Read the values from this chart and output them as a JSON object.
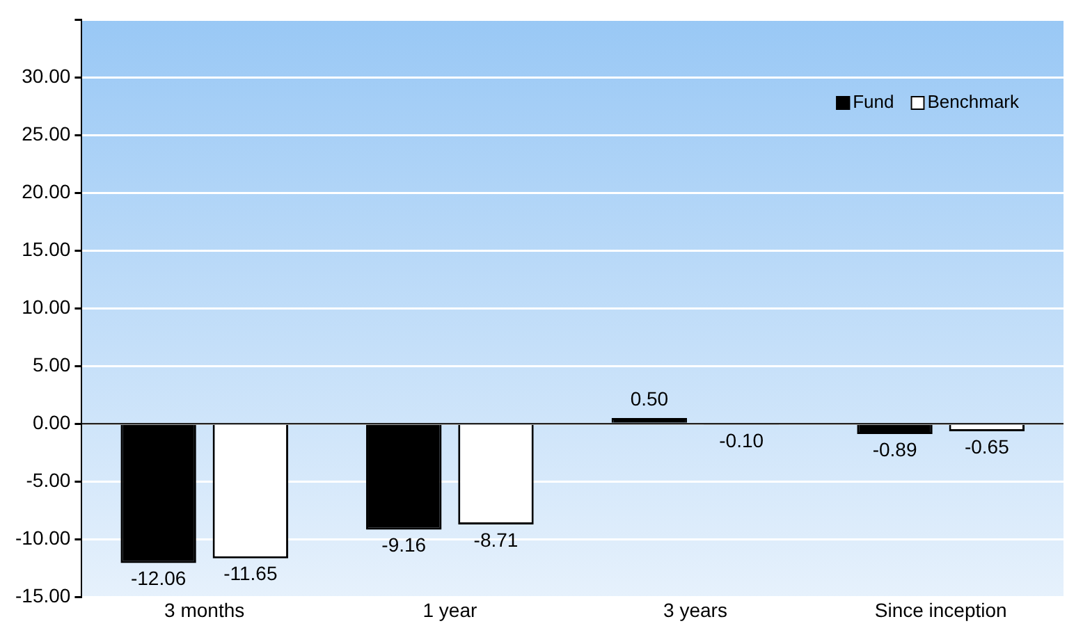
{
  "chart_data": {
    "type": "bar",
    "categories": [
      "3 months",
      "1 year",
      "3 years",
      "Since inception"
    ],
    "series": [
      {
        "name": "Fund",
        "color": "#000000",
        "values": [
          -12.06,
          -9.16,
          0.5,
          -0.89
        ],
        "value_labels": [
          "-12.06",
          "-9.16",
          "0.50",
          "-0.89"
        ]
      },
      {
        "name": "Benchmark",
        "color": "#ffffff",
        "values": [
          -11.65,
          -8.71,
          -0.1,
          -0.65
        ],
        "value_labels": [
          "-11.65",
          "-8.71",
          "-0.10",
          "-0.65"
        ]
      }
    ],
    "ylim": [
      -15,
      35
    ],
    "yticks": [
      {
        "value": -15,
        "label": "-15.00"
      },
      {
        "value": -10,
        "label": "-10.00"
      },
      {
        "value": -5,
        "label": "-5.00"
      },
      {
        "value": 0,
        "label": "0.00"
      },
      {
        "value": 5,
        "label": "5.00"
      },
      {
        "value": 10,
        "label": "10.00"
      },
      {
        "value": 15,
        "label": "15.00"
      },
      {
        "value": 20,
        "label": "20.00"
      },
      {
        "value": 25,
        "label": "25.00"
      },
      {
        "value": 30,
        "label": "30.00"
      },
      {
        "value": 35,
        "label": null
      }
    ],
    "grid": "y",
    "legend": "top right"
  }
}
